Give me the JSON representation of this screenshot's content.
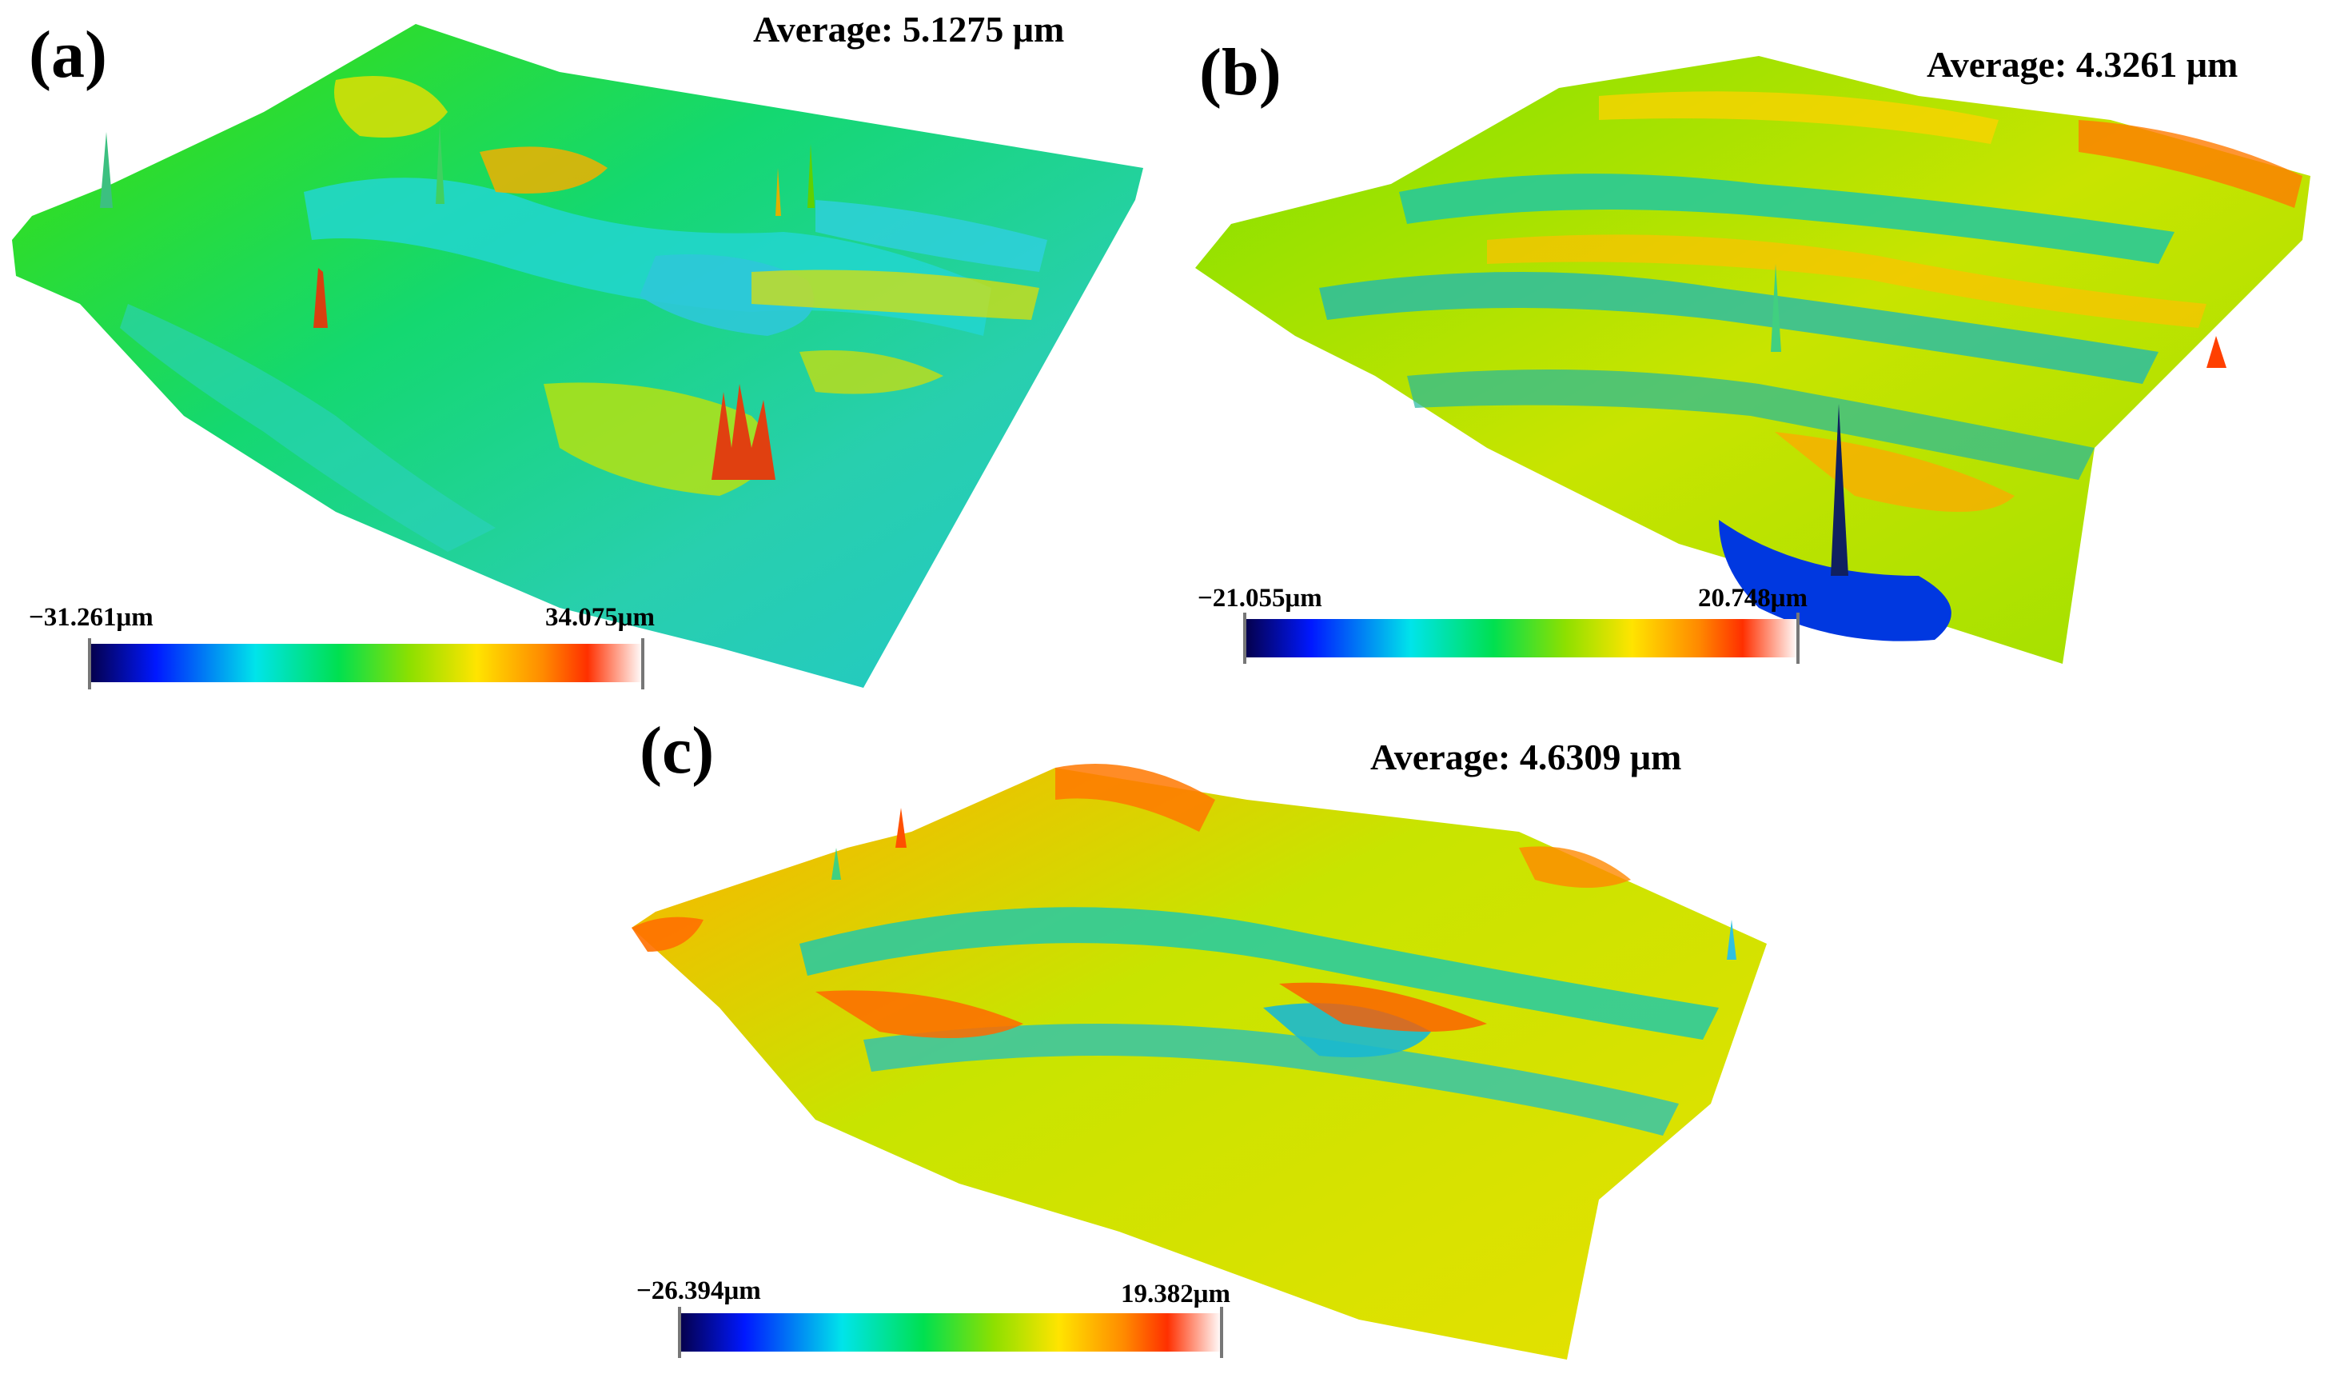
{
  "colors": {
    "colormap": [
      "#05004a",
      "#0010ff",
      "#00e0e8",
      "#00e050",
      "#7ee000",
      "#ffe400",
      "#ff8a00",
      "#ff3000",
      "#ffffff"
    ],
    "background": "#ffffff"
  },
  "panels": [
    {
      "label": "(a)",
      "average_text": "Average: 5.1275 μm",
      "scale_min": "−31.261μm",
      "scale_max": "34.075μm"
    },
    {
      "label": "(b)",
      "average_text": "Average: 4.3261 μm",
      "scale_min": "−21.055μm",
      "scale_max": "20.748μm"
    },
    {
      "label": "(c)",
      "average_text": "Average: 4.6309 μm",
      "scale_min": "−26.394μm",
      "scale_max": "19.382μm"
    }
  ]
}
